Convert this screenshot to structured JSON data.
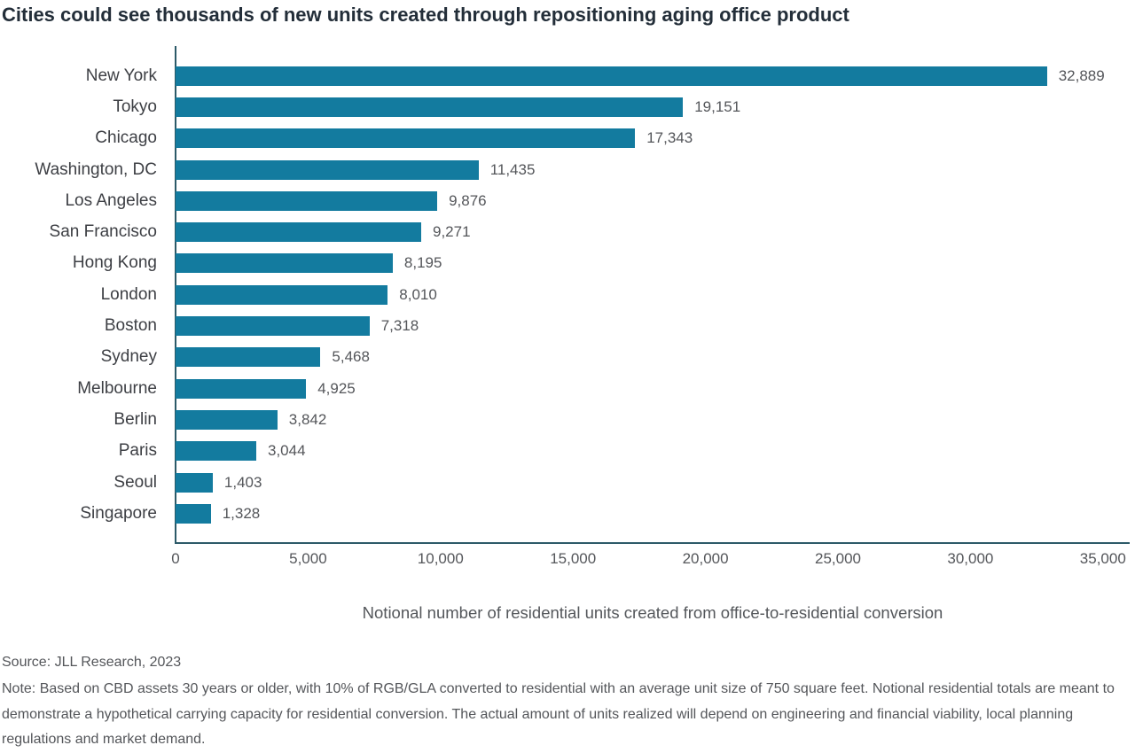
{
  "title": "Cities could see thousands of new units created through repositioning aging office product",
  "chart_data": {
    "type": "bar",
    "orientation": "horizontal",
    "categories": [
      "New York",
      "Tokyo",
      "Chicago",
      "Washington, DC",
      "Los Angeles",
      "San Francisco",
      "Hong Kong",
      "London",
      "Boston",
      "Sydney",
      "Melbourne",
      "Berlin",
      "Paris",
      "Seoul",
      "Singapore"
    ],
    "values": [
      32889,
      19151,
      17343,
      11435,
      9876,
      9271,
      8195,
      8010,
      7318,
      5468,
      4925,
      3842,
      3044,
      1403,
      1328
    ],
    "value_labels": [
      "32,889",
      "19,151",
      "17,343",
      "11,435",
      "9,876",
      "9,271",
      "8,195",
      "8,010",
      "7,318",
      "5,468",
      "4,925",
      "3,842",
      "3,044",
      "1,403",
      "1,328"
    ],
    "xlabel": "Notional number of residential units created from office-to-residential conversion",
    "ylabel": "",
    "xlim": [
      0,
      35000
    ],
    "xticks": [
      0,
      5000,
      10000,
      15000,
      20000,
      25000,
      30000,
      35000
    ],
    "xtick_labels": [
      "0",
      "5,000",
      "10,000",
      "15,000",
      "20,000",
      "25,000",
      "30,000",
      "35,000"
    ],
    "grid": false,
    "legend": "none",
    "bar_color": "#137B9F",
    "axis_color": "#2C5A68"
  },
  "footer": {
    "source": "Source: JLL Research, 2023",
    "note": "Note: Based on CBD assets 30 years or older, with 10% of RGB/GLA converted to residential with an average unit size of 750 square feet. Notional residential totals are meant to demonstrate a hypothetical carrying capacity for residential conversion. The actual amount of units realized will depend on engineering and financial viability, local planning regulations and market demand."
  }
}
